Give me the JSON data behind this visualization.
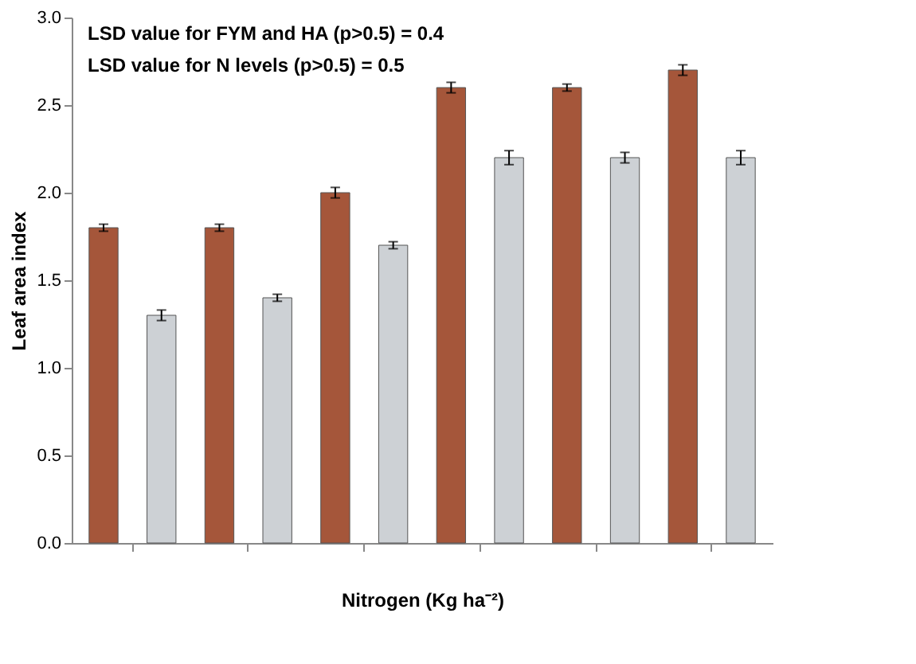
{
  "chart_data": {
    "type": "bar",
    "xlabel": "Nitrogen (Kg ha⁻²)",
    "ylabel": "Leaf area index",
    "annotations": [
      "LSD value for FYM and HA (p>0.5) = 0.4",
      "LSD value for N levels (p>0.5) = 0.5"
    ],
    "categories": [
      null,
      null,
      null,
      null,
      null,
      null
    ],
    "series": [
      {
        "color": "#a5563a",
        "values": [
          1.8,
          1.8,
          2.0,
          2.6,
          2.6,
          2.7
        ],
        "errors": [
          0.02,
          0.02,
          0.03,
          0.03,
          0.02,
          0.03
        ]
      },
      {
        "color": "#cdd1d5",
        "values": [
          1.3,
          1.4,
          1.7,
          2.2,
          2.2,
          2.2
        ],
        "errors": [
          0.03,
          0.02,
          0.02,
          0.04,
          0.03,
          0.04
        ]
      }
    ],
    "ylim": [
      0,
      3.0
    ],
    "yticks": [
      {
        "value": 0,
        "label": "0.0"
      },
      0.5,
      {
        "value": 1,
        "label": "1.0"
      },
      1.5,
      {
        "value": 2,
        "label": "2.0"
      },
      2.5,
      {
        "value": 3,
        "label": "3.0"
      }
    ],
    "tick_labels": "y",
    "grid": false
  }
}
